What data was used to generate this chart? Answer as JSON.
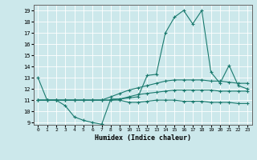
{
  "title": "",
  "xlabel": "Humidex (Indice chaleur)",
  "ylabel": "",
  "bg_color": "#cce8eb",
  "line_color": "#1a7a6e",
  "grid_color": "#ffffff",
  "xlim": [
    -0.5,
    23.5
  ],
  "ylim": [
    8.8,
    19.5
  ],
  "yticks": [
    9,
    10,
    11,
    12,
    13,
    14,
    15,
    16,
    17,
    18,
    19
  ],
  "xticks": [
    0,
    1,
    2,
    3,
    4,
    5,
    6,
    7,
    8,
    9,
    10,
    11,
    12,
    13,
    14,
    15,
    16,
    17,
    18,
    19,
    20,
    21,
    22,
    23
  ],
  "series": [
    {
      "x": [
        0,
        1,
        2,
        3,
        4,
        5,
        6,
        7,
        8,
        9,
        10,
        11,
        12,
        13,
        14,
        15,
        16,
        17,
        18,
        19,
        20,
        21,
        22,
        23
      ],
      "y": [
        13,
        11,
        11,
        10.5,
        9.5,
        9.2,
        9.0,
        8.85,
        11.1,
        11.1,
        11.2,
        11.3,
        13.2,
        13.3,
        17.0,
        18.4,
        19.0,
        17.8,
        19.0,
        13.5,
        12.5,
        14.1,
        12.3,
        12.0
      ]
    },
    {
      "x": [
        0,
        1,
        2,
        3,
        4,
        5,
        6,
        7,
        8,
        9,
        10,
        11,
        12,
        13,
        14,
        15,
        16,
        17,
        18,
        19,
        20,
        21,
        22,
        23
      ],
      "y": [
        11.0,
        11.0,
        11.0,
        11.0,
        11.0,
        11.0,
        11.0,
        11.0,
        11.3,
        11.6,
        11.9,
        12.1,
        12.3,
        12.5,
        12.7,
        12.8,
        12.8,
        12.8,
        12.8,
        12.7,
        12.7,
        12.6,
        12.5,
        12.5
      ]
    },
    {
      "x": [
        0,
        1,
        2,
        3,
        4,
        5,
        6,
        7,
        8,
        9,
        10,
        11,
        12,
        13,
        14,
        15,
        16,
        17,
        18,
        19,
        20,
        21,
        22,
        23
      ],
      "y": [
        11.0,
        11.0,
        11.0,
        11.0,
        11.0,
        11.0,
        11.0,
        11.0,
        11.0,
        11.1,
        11.3,
        11.5,
        11.6,
        11.7,
        11.8,
        11.9,
        11.9,
        11.9,
        11.9,
        11.9,
        11.8,
        11.8,
        11.8,
        11.8
      ]
    },
    {
      "x": [
        0,
        1,
        2,
        3,
        4,
        5,
        6,
        7,
        8,
        9,
        10,
        11,
        12,
        13,
        14,
        15,
        16,
        17,
        18,
        19,
        20,
        21,
        22,
        23
      ],
      "y": [
        11.0,
        11.0,
        11.0,
        11.0,
        11.0,
        11.0,
        11.0,
        11.0,
        11.0,
        11.0,
        10.8,
        10.8,
        10.9,
        11.0,
        11.0,
        11.0,
        10.9,
        10.9,
        10.9,
        10.8,
        10.8,
        10.8,
        10.7,
        10.7
      ]
    }
  ]
}
